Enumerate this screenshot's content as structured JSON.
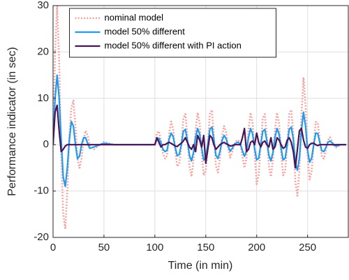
{
  "chart_data": {
    "type": "line",
    "xlabel": "Time (in min)",
    "ylabel": "Performance indicator (in sec)",
    "xlim": [
      0,
      290
    ],
    "ylim": [
      -20,
      30
    ],
    "xticks": [
      0,
      50,
      100,
      150,
      200,
      250
    ],
    "yticks": [
      -20,
      -10,
      0,
      10,
      20,
      30
    ],
    "grid": true,
    "legend_location": "north",
    "x": [
      0,
      2,
      4,
      6,
      8,
      10,
      12,
      14,
      16,
      18,
      20,
      22,
      24,
      26,
      28,
      30,
      32,
      34,
      36,
      40,
      50,
      60,
      70,
      80,
      90,
      100,
      102,
      104,
      106,
      108,
      110,
      112,
      114,
      116,
      118,
      120,
      122,
      124,
      126,
      128,
      130,
      132,
      134,
      136,
      138,
      140,
      142,
      144,
      146,
      148,
      150,
      152,
      154,
      156,
      158,
      160,
      162,
      164,
      166,
      168,
      170,
      172,
      174,
      176,
      178,
      180,
      182,
      184,
      186,
      188,
      190,
      192,
      194,
      196,
      198,
      200,
      202,
      204,
      206,
      208,
      210,
      212,
      214,
      216,
      218,
      220,
      222,
      224,
      226,
      228,
      230,
      232,
      234,
      236,
      238,
      240,
      242,
      244,
      246,
      248,
      250,
      252,
      254,
      256,
      258,
      260,
      262,
      264,
      266,
      268,
      270,
      272,
      274,
      276,
      278,
      280,
      282,
      284,
      286,
      288
    ],
    "series": [
      {
        "name": "nominal model",
        "color": "#f4a3a3",
        "line_style": "dotted",
        "values": [
          0,
          20,
          30,
          18,
          -2,
          -15,
          -18,
          -10,
          2,
          8,
          9.5,
          4,
          -3,
          -5,
          -3,
          1,
          3,
          2,
          0,
          -1,
          0.6,
          0,
          0,
          0,
          0,
          0,
          2.5,
          2.9,
          0.8,
          -2,
          -3,
          -2.4,
          2.3,
          5,
          3.3,
          -1.2,
          -4.7,
          -4.1,
          0,
          5.7,
          6.6,
          1.7,
          -4.6,
          -6.9,
          -3.2,
          3.2,
          6.9,
          4.6,
          -1.7,
          -6.6,
          -5.7,
          0,
          6.6,
          7.5,
          1.9,
          -4.6,
          -6,
          -2.8,
          1.8,
          4,
          2.6,
          -0.7,
          -2.8,
          -1.6,
          0,
          0.8,
          1,
          0.2,
          -2.6,
          -5,
          -2.8,
          3.2,
          6.9,
          4.6,
          -1.7,
          -8.5,
          -6.5,
          0,
          5.7,
          6.6,
          1.7,
          -4.6,
          -6.9,
          -3.2,
          3.2,
          6.9,
          4.6,
          -1.7,
          -6.6,
          -5.7,
          0,
          6.6,
          7.5,
          2.4,
          -8,
          -11,
          -5.5,
          6.5,
          14.5,
          8.5,
          -2.4,
          -7.5,
          -5.7,
          0,
          4.9,
          4.7,
          1,
          -2.6,
          -3,
          -1.2,
          1,
          1.6,
          0.8,
          -0.2,
          -0.6,
          -0.4,
          0,
          0,
          0,
          0
        ]
      },
      {
        "name": "model 50% different",
        "color": "#1e9bef",
        "line_style": "solid",
        "values": [
          0,
          10,
          15,
          10,
          1,
          -7,
          -9,
          -5,
          1,
          5,
          4,
          0,
          -3,
          -2.5,
          0,
          1.5,
          1.5,
          0.3,
          -0.8,
          -0.5,
          0.3,
          0,
          0,
          0,
          0,
          0,
          1.2,
          1.4,
          0.4,
          -1.0,
          -1.5,
          -1.2,
          1.2,
          2.5,
          1.7,
          -0.6,
          -2.4,
          -2.1,
          0,
          2.9,
          3.3,
          0.8,
          -2.3,
          -3.5,
          -1.6,
          1.6,
          3.5,
          2.3,
          -0.8,
          -3.3,
          -2.9,
          0,
          3.3,
          3.8,
          1.0,
          -2.3,
          -3.0,
          -1.4,
          0.9,
          2.0,
          1.3,
          -0.4,
          -1.4,
          -0.8,
          0,
          0.4,
          0.5,
          0.1,
          -1.3,
          -2.5,
          -1.4,
          1.6,
          3.5,
          2.3,
          -0.8,
          -3.3,
          -2.9,
          0,
          2.9,
          3.3,
          0.8,
          -2.3,
          -3.5,
          -1.6,
          1.6,
          3.5,
          2.3,
          -0.8,
          -3.3,
          -2.9,
          0,
          3.3,
          3.8,
          1.2,
          -4.0,
          -5.5,
          -2.8,
          3.2,
          7.0,
          4.0,
          -1.2,
          -3.8,
          -2.9,
          0,
          2.5,
          2.4,
          0.5,
          -1.3,
          -1.5,
          -0.6,
          0.5,
          0.8,
          0.4,
          -0.1,
          -0.3,
          -0.2,
          0,
          0,
          0,
          0
        ]
      },
      {
        "name": "model 50% different with PI action",
        "color": "#4a1455",
        "line_style": "solid",
        "values": [
          0,
          7,
          8.5,
          3,
          -1.5,
          -1,
          -0.3,
          0,
          0,
          0,
          0,
          0,
          0,
          0,
          0,
          0,
          0,
          0,
          0,
          0,
          0,
          0,
          0,
          0,
          0,
          0,
          1.5,
          0.5,
          -0.5,
          0,
          0,
          0.3,
          0.5,
          0.3,
          0,
          -0.3,
          -0.4,
          0,
          0.3,
          0.8,
          1.5,
          0.5,
          -0.5,
          -1,
          0,
          -1.5,
          2,
          1,
          -0.5,
          2,
          -4,
          -1,
          2,
          1.5,
          0,
          -1,
          -0.5,
          0,
          0.3,
          0.5,
          0.2,
          0,
          -0.3,
          -0.2,
          0,
          0,
          0,
          0,
          1.5,
          3.5,
          -1.5,
          -1,
          0.5,
          0.8,
          0,
          2.5,
          0.5,
          -0.5,
          0.5,
          0.8,
          0,
          -0.5,
          1.5,
          -1,
          -0.5,
          1.5,
          1,
          0,
          -0.8,
          -0.5,
          1,
          1.5,
          0.5,
          -1.5,
          -5,
          -1,
          3,
          3.5,
          1,
          -0.5,
          -0.8,
          0,
          0.3,
          0.3,
          0,
          -0.2,
          0,
          0,
          0,
          0,
          0,
          0,
          0,
          0,
          0,
          0,
          0,
          0,
          0,
          0
        ]
      }
    ]
  }
}
